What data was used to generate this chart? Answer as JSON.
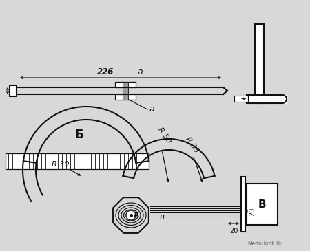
{
  "bg_color": "#d8d8d8",
  "line_color": "#111111",
  "label_226": "226",
  "label_a1": "a",
  "label_a2": "a",
  "label_B": "Б",
  "label_V_right": "В",
  "label_v_center": "в",
  "label_A": "А",
  "label_R30": "R 30",
  "label_R50": "R 50",
  "label_R35": "R 35",
  "label_20h": "20",
  "label_20v": "20",
  "watermark": "MedoBook.Ru"
}
